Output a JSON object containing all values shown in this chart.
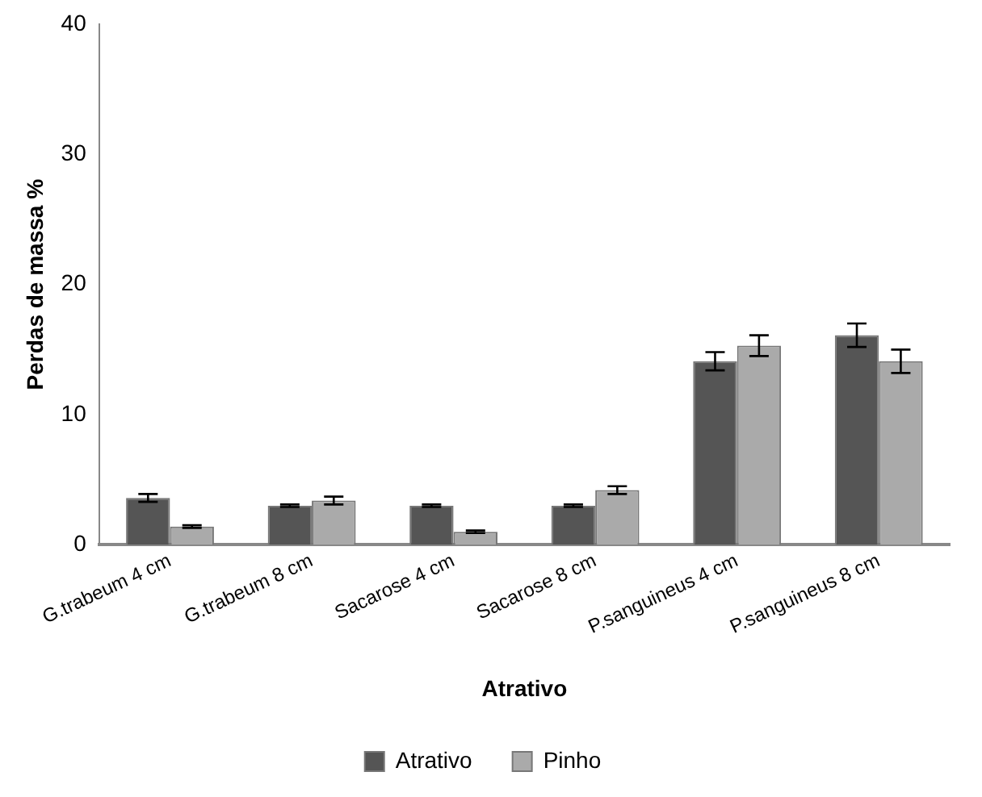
{
  "chart_data": {
    "type": "bar",
    "xlabel": "Atrativo",
    "ylabel": "Perdas de massa %",
    "categories": [
      "G.trabeum 4 cm",
      "G.trabeum 8 cm",
      "Sacarose 4 cm",
      "Sacarose 8 cm",
      "P.sanguineus 4 cm",
      "P.sanguineus 8 cm"
    ],
    "series": [
      {
        "name": "Atrativo",
        "color": "#555555",
        "values": [
          3.6,
          3.0,
          3.0,
          3.0,
          14.1,
          16.1
        ],
        "errors": [
          0.3,
          0.1,
          0.1,
          0.1,
          0.7,
          0.9
        ]
      },
      {
        "name": "Pinho",
        "color": "#aaaaaa",
        "values": [
          1.4,
          3.4,
          1.0,
          4.2,
          15.3,
          14.1
        ],
        "errors": [
          0.1,
          0.3,
          0.1,
          0.3,
          0.8,
          0.9
        ]
      }
    ],
    "ylim": [
      0,
      40
    ],
    "yticks": [
      0,
      10,
      20,
      30,
      40
    ],
    "grid": false,
    "legend": "bottom"
  }
}
